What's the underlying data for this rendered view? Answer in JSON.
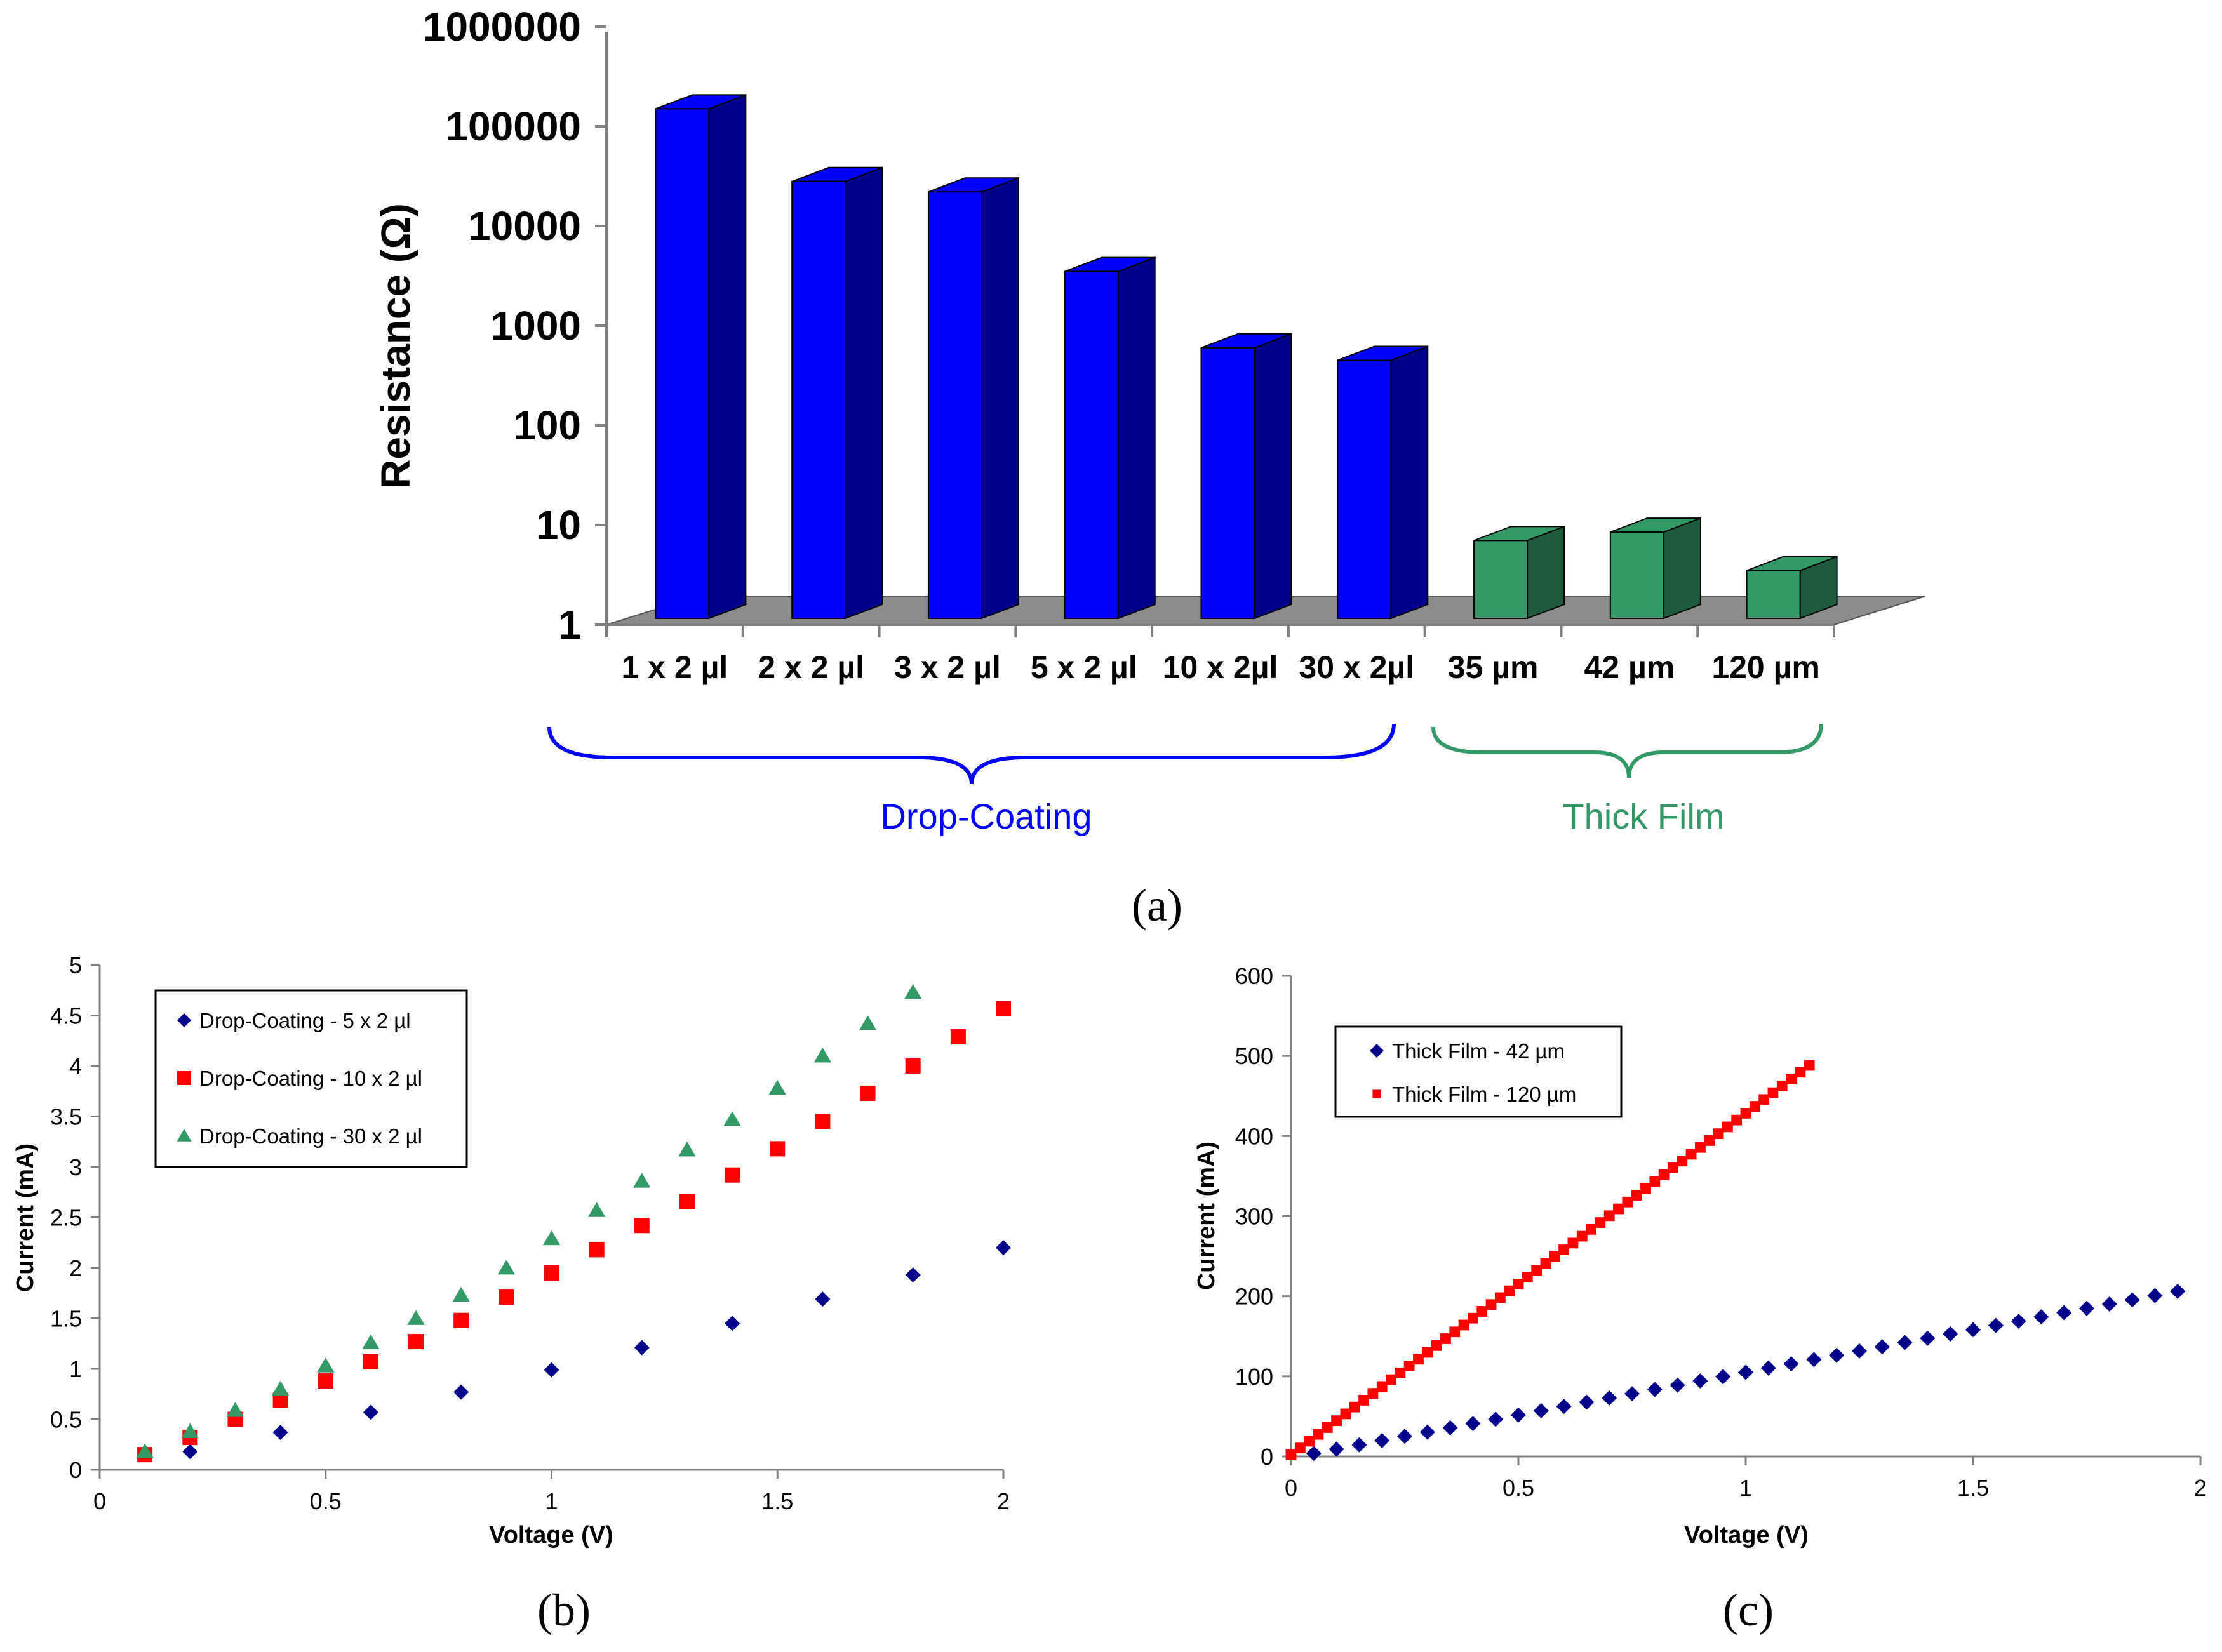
{
  "panel_labels": {
    "a": "(a)",
    "b": "(b)",
    "c": "(c)"
  },
  "colors": {
    "drop": "#0000ff",
    "drop_dark": "#00008b",
    "film": "#339966",
    "film_dark": "#1e5a3c",
    "floor": "#8c8c8c",
    "navy": "#00008b",
    "red": "#ff0000",
    "green": "#339966"
  },
  "chart_data": [
    {
      "id": "a",
      "type": "bar",
      "title": "",
      "xlabel": "",
      "ylabel": "Resistance (Ω)",
      "yscale": "log",
      "ylim": [
        1,
        1000000
      ],
      "yticks": [
        "1",
        "10",
        "100",
        "1000",
        "10000",
        "100000",
        "1000000"
      ],
      "categories": [
        "1 x 2 µl",
        "2 x 2 µl",
        "3 x 2 µl",
        "5 x 2 µl",
        "10 x 2µl",
        "30 x 2µl",
        "35 µm",
        "42 µm",
        "120 µm"
      ],
      "values": [
        150000,
        28000,
        22000,
        3500,
        600,
        450,
        7,
        8.5,
        3.5
      ],
      "groups": [
        {
          "label": "Drop-Coating",
          "start": 0,
          "end": 5,
          "color": "#0000ff"
        },
        {
          "label": "Thick Film",
          "start": 6,
          "end": 8,
          "color": "#339966"
        }
      ]
    },
    {
      "id": "b",
      "type": "scatter",
      "xlabel": "Voltage (V)",
      "ylabel": "Current (mA)",
      "xlim": [
        0,
        2
      ],
      "ylim": [
        0,
        5
      ],
      "xticks": [
        "0",
        "0.5",
        "1",
        "1.5",
        "2"
      ],
      "yticks": [
        "0",
        "0.5",
        "1",
        "1.5",
        "2",
        "2.5",
        "3",
        "3.5",
        "4",
        "4.5",
        "5"
      ],
      "legend_position": "top-left",
      "series": [
        {
          "name": "Drop-Coating - 5 x 2 µl",
          "marker": "diamond",
          "color": "#00008b",
          "x": [
            0.1,
            0.2,
            0.4,
            0.6,
            0.8,
            1.0,
            1.2,
            1.4,
            1.6,
            1.8,
            2.0
          ],
          "y": [
            0.15,
            0.18,
            0.37,
            0.57,
            0.77,
            0.99,
            1.21,
            1.45,
            1.69,
            1.93,
            2.2
          ]
        },
        {
          "name": "Drop-Coating - 10 x 2 µl",
          "marker": "square",
          "color": "#ff0000",
          "x": [
            0.1,
            0.2,
            0.3,
            0.4,
            0.5,
            0.6,
            0.7,
            0.8,
            0.9,
            1.0,
            1.1,
            1.2,
            1.3,
            1.4,
            1.5,
            1.6,
            1.7,
            1.8,
            1.9,
            2.0
          ],
          "y": [
            0.15,
            0.32,
            0.5,
            0.69,
            0.88,
            1.07,
            1.27,
            1.48,
            1.71,
            1.95,
            2.18,
            2.42,
            2.66,
            2.92,
            3.18,
            3.45,
            3.73,
            4.0,
            4.29,
            4.57
          ]
        },
        {
          "name": "Drop-Coating - 30 x 2 µl",
          "marker": "triangle",
          "color": "#339966",
          "x": [
            0.1,
            0.2,
            0.3,
            0.4,
            0.5,
            0.6,
            0.7,
            0.8,
            0.9,
            1.0,
            1.1,
            1.2,
            1.3,
            1.4,
            1.5,
            1.6,
            1.7,
            1.8
          ],
          "y": [
            0.18,
            0.38,
            0.59,
            0.8,
            1.03,
            1.26,
            1.5,
            1.73,
            2.0,
            2.29,
            2.57,
            2.86,
            3.17,
            3.47,
            3.78,
            4.1,
            4.42,
            4.73
          ]
        }
      ]
    },
    {
      "id": "c",
      "type": "scatter",
      "xlabel": "Voltage (V)",
      "ylabel": "Current (mA)",
      "xlim": [
        0,
        2
      ],
      "ylim": [
        0,
        600
      ],
      "xticks": [
        "0",
        "0.5",
        "1",
        "1.5",
        "2"
      ],
      "yticks": [
        "0",
        "100",
        "200",
        "300",
        "400",
        "500",
        "600"
      ],
      "legend_position": "top-left",
      "series": [
        {
          "name": "Thick Film - 42 µm",
          "marker": "diamond",
          "color": "#00008b",
          "x_start": 0.05,
          "x_end": 1.95,
          "x_step": 0.05,
          "slope": 106.5,
          "intercept": -1.5
        },
        {
          "name": "Thick Film - 120 µm",
          "marker": "square-small",
          "color": "#ff0000",
          "x_start": 0.0,
          "x_end": 1.15,
          "x_step": 0.02,
          "slope": 426.5,
          "intercept": 2
        }
      ]
    }
  ]
}
